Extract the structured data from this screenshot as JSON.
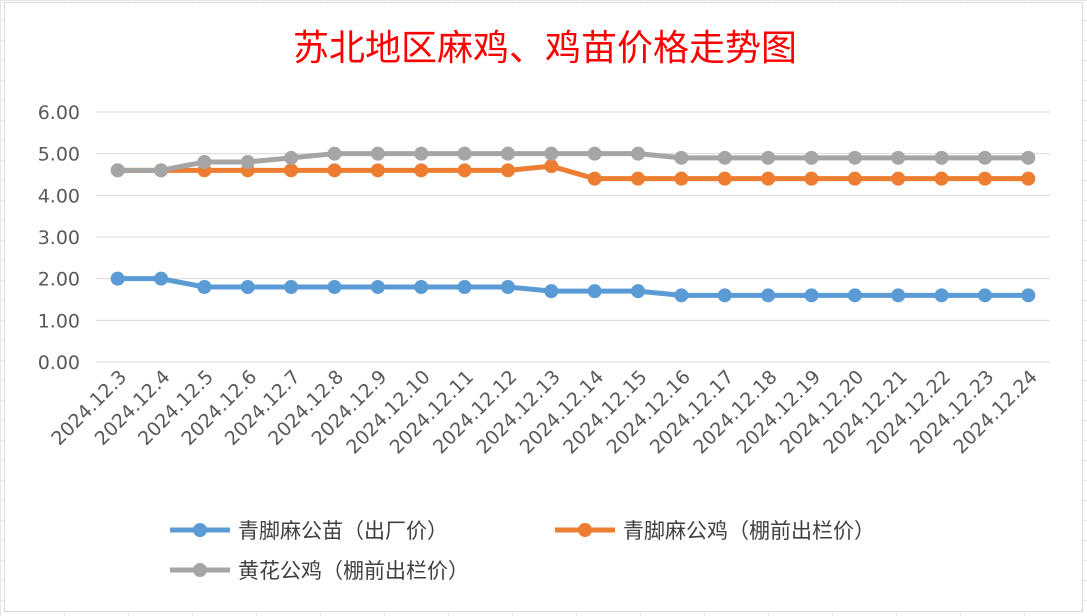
{
  "chart_data": {
    "type": "line",
    "title": "苏北地区麻鸡、鸡苗价格走势图",
    "xlabel": "",
    "ylabel": "",
    "ylim": [
      0,
      6
    ],
    "yticks": [
      "0.00",
      "1.00",
      "2.00",
      "3.00",
      "4.00",
      "5.00",
      "6.00"
    ],
    "grid": "horizontal",
    "legend_position": "bottom",
    "categories": [
      "2024.12.3",
      "2024.12.4",
      "2024.12.5",
      "2024.12.6",
      "2024.12.7",
      "2024.12.8",
      "2024.12.9",
      "2024.12.10",
      "2024.12.11",
      "2024.12.12",
      "2024.12.13",
      "2024.12.14",
      "2024.12.15",
      "2024.12.16",
      "2024.12.17",
      "2024.12.18",
      "2024.12.19",
      "2024.12.20",
      "2024.12.21",
      "2024.12.22",
      "2024.12.23",
      "2024.12.24"
    ],
    "series": [
      {
        "name": "青脚麻公苗（出厂价）",
        "color": "#5b9bd5",
        "values": [
          2.0,
          2.0,
          1.8,
          1.8,
          1.8,
          1.8,
          1.8,
          1.8,
          1.8,
          1.8,
          1.7,
          1.7,
          1.7,
          1.6,
          1.6,
          1.6,
          1.6,
          1.6,
          1.6,
          1.6,
          1.6,
          1.6
        ]
      },
      {
        "name": "青脚麻公鸡（棚前出栏价）",
        "color": "#ed7d31",
        "values": [
          4.6,
          4.6,
          4.6,
          4.6,
          4.6,
          4.6,
          4.6,
          4.6,
          4.6,
          4.6,
          4.7,
          4.4,
          4.4,
          4.4,
          4.4,
          4.4,
          4.4,
          4.4,
          4.4,
          4.4,
          4.4,
          4.4
        ]
      },
      {
        "name": "黄花公鸡（棚前出栏价）",
        "color": "#a5a5a5",
        "values": [
          4.6,
          4.6,
          4.8,
          4.8,
          4.9,
          5.0,
          5.0,
          5.0,
          5.0,
          5.0,
          5.0,
          5.0,
          5.0,
          4.9,
          4.9,
          4.9,
          4.9,
          4.9,
          4.9,
          4.9,
          4.9,
          4.9
        ]
      }
    ]
  }
}
